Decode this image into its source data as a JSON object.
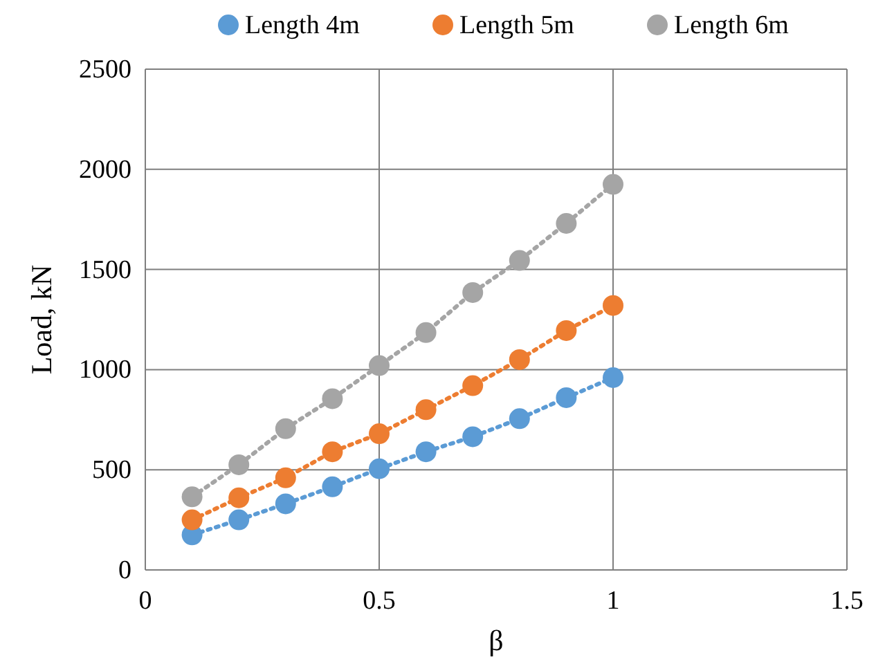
{
  "chart_data": {
    "type": "line",
    "xlabel": "β",
    "ylabel": "Load, kN",
    "x": [
      0.1,
      0.2,
      0.3,
      0.4,
      0.5,
      0.6,
      0.7,
      0.8,
      0.9,
      1
    ],
    "series": [
      {
        "name": "Length 4m",
        "color": "#5b9bd5",
        "values": [
          175,
          250,
          330,
          415,
          505,
          590,
          665,
          755,
          860,
          960
        ]
      },
      {
        "name": "Length 5m",
        "color": "#ed7d31",
        "values": [
          250,
          360,
          460,
          590,
          680,
          800,
          920,
          1050,
          1195,
          1320
        ]
      },
      {
        "name": "Length 6m",
        "color": "#a5a5a5",
        "values": [
          365,
          525,
          705,
          855,
          1020,
          1185,
          1385,
          1545,
          1730,
          1925
        ]
      }
    ],
    "xlim": [
      0,
      1.5
    ],
    "xticks": [
      0,
      0.5,
      1,
      1.5
    ],
    "ylim": [
      0,
      2500
    ],
    "yticks": [
      0,
      500,
      1000,
      1500,
      2000,
      2500
    ],
    "grid": true,
    "legend": "top",
    "marker": "circle",
    "line_style": "dotted"
  }
}
